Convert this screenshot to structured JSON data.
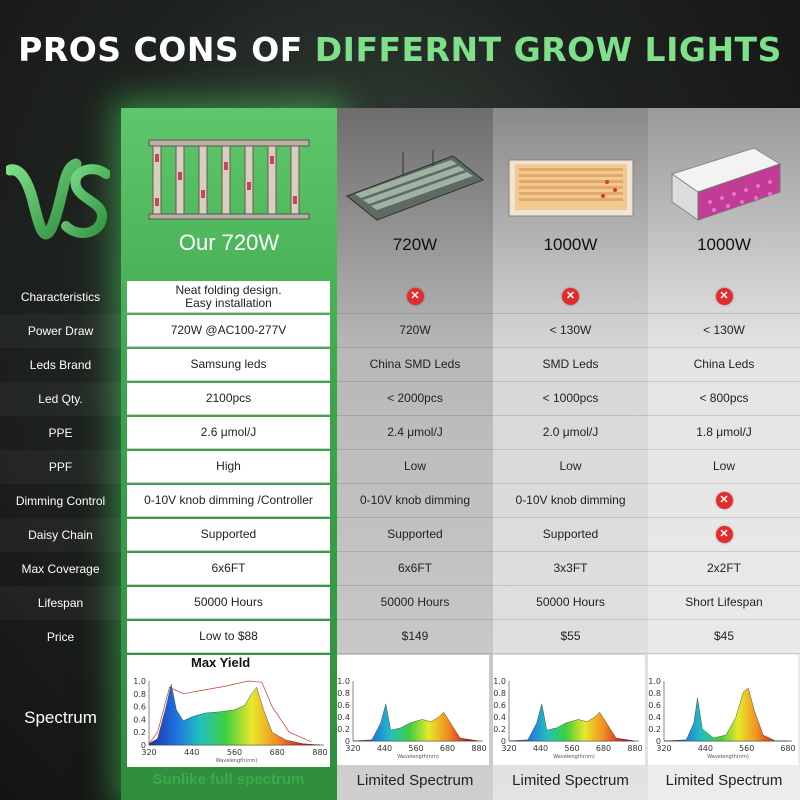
{
  "headline": {
    "part1": "PROS CONS OF ",
    "part2": "DIFFERNT GROW LIGHTS"
  },
  "vs_text": "VS",
  "columns": [
    {
      "title": "Our 720W",
      "spectrum_title": "Max Yield",
      "spectrum_caption": "Sunlike full spectrum"
    },
    {
      "title": "720W",
      "spectrum_caption": "Limited Spectrum"
    },
    {
      "title": "1000W",
      "spectrum_caption": "Limited Spectrum"
    },
    {
      "title": "1000W",
      "spectrum_caption": "Limited Spectrum"
    }
  ],
  "row_labels": [
    "Characteristics",
    "Power Draw",
    "Leds Brand",
    "Led Qty.",
    "PPE",
    "PPF",
    "Dimming Control",
    "Daisy Chain",
    "Max Coverage",
    "Lifespan",
    "Price"
  ],
  "spectrum_label": "Spectrum",
  "cells": {
    "ours": [
      "Neat folding design.\nEasy installation",
      "720W @AC100-277V",
      "Samsung leds",
      "2100pcs",
      "2.6 μmol/J",
      "High",
      "0-10V knob dimming /Controller",
      "Supported",
      "6x6FT",
      "50000 Hours",
      "Low to $88"
    ],
    "a": [
      "",
      "720W",
      "China SMD Leds",
      "< 2000pcs",
      "2.4 μmol/J",
      "Low",
      "0-10V knob dimming",
      "Supported",
      "6x6FT",
      "50000 Hours",
      "$149"
    ],
    "b": [
      "",
      "< 130W",
      "SMD Leds",
      "< 1000pcs",
      "2.0 μmol/J",
      "Low",
      "0-10V knob dimming",
      "Supported",
      "3x3FT",
      "50000 Hours",
      "$55"
    ],
    "c": [
      "",
      "< 130W",
      "China Leds",
      "< 800pcs",
      "1.8 μmol/J",
      "Low",
      "",
      "",
      "2x2FT",
      "Short Lifespan",
      "$45"
    ]
  },
  "not_supported": {
    "a": [
      0
    ],
    "b": [
      0
    ],
    "c": [
      0,
      6,
      7
    ]
  },
  "spectrum_axis": {
    "x_ticks": [
      "320",
      "440",
      "560",
      "680",
      "880"
    ],
    "x_ticks_c": [
      "320",
      "440",
      "560",
      "680"
    ],
    "y_ticks": [
      "1.0",
      "0.8",
      "0.6",
      "0.4",
      "0.2",
      "0"
    ],
    "x_label": "Wavelength(nm)"
  },
  "colors": {
    "accent_green": "#7fe08a",
    "ours_column": "#3da54c",
    "not_supported_red": "#e32b2b"
  }
}
